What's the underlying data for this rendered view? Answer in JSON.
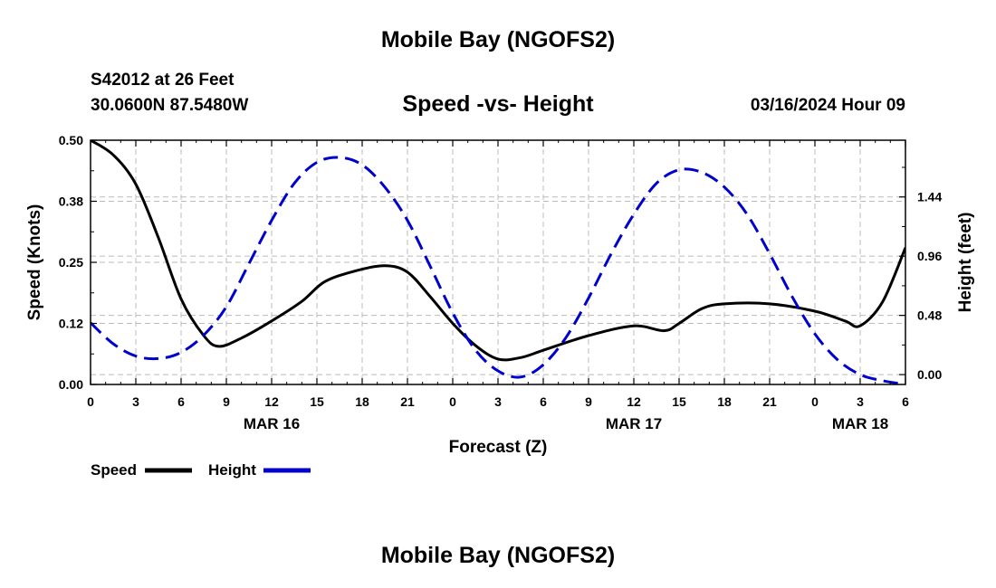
{
  "header": {
    "title": "Mobile Bay (NGOFS2)",
    "station": "S42012 at 26 Feet",
    "coords": "30.0600N  87.5480W",
    "chart_title": "Speed -vs- Height",
    "forecast_time": "03/16/2024 Hour 09"
  },
  "footer": {
    "title": "Mobile Bay (NGOFS2)"
  },
  "chart_data": {
    "type": "line",
    "title": "Speed -vs- Height",
    "xlabel": "Forecast (Z)",
    "ylabel": "Speed (Knots)",
    "y2label": "Height (feet)",
    "xlim": [
      0,
      54
    ],
    "ylim": [
      0,
      0.5
    ],
    "y2lim": [
      -0.08,
      1.9
    ],
    "x_ticks": [
      0,
      3,
      6,
      9,
      12,
      15,
      18,
      21,
      24,
      27,
      30,
      33,
      36,
      39,
      42,
      45,
      48,
      51,
      54
    ],
    "x_tick_labels": [
      "0",
      "3",
      "6",
      "9",
      "12",
      "15",
      "18",
      "21",
      "0",
      "3",
      "6",
      "9",
      "12",
      "15",
      "18",
      "21",
      "0",
      "3",
      "6"
    ],
    "date_labels": [
      {
        "x": 12,
        "label": "MAR 16"
      },
      {
        "x": 36,
        "label": "MAR 17"
      },
      {
        "x": 51,
        "label": "MAR 18"
      }
    ],
    "y_ticks": [
      0,
      0.125,
      0.25,
      0.375,
      0.5
    ],
    "y_tick_labels": [
      "0.00",
      "0.12",
      "0.25",
      "0.38",
      "0.50"
    ],
    "y2_ticks": [
      0,
      0.48,
      0.96,
      1.44
    ],
    "y2_tick_labels": [
      "0.00",
      "0.48",
      "0.96",
      "1.44"
    ],
    "grid": true,
    "series": [
      {
        "name": "Speed",
        "axis": "left",
        "color": "#000000",
        "style": "solid",
        "x": [
          0,
          1.5,
          3,
          4.5,
          6,
          7.5,
          8.5,
          10,
          12,
          14,
          15.5,
          17.5,
          19.5,
          21,
          22.5,
          24,
          25.5,
          27,
          28.5,
          30,
          33,
          36,
          38,
          39,
          40.5,
          42,
          45,
          48,
          50,
          51,
          52.5,
          54
        ],
        "y": [
          0.5,
          0.47,
          0.41,
          0.3,
          0.175,
          0.1,
          0.078,
          0.095,
          0.13,
          0.17,
          0.21,
          0.232,
          0.243,
          0.23,
          0.18,
          0.125,
          0.08,
          0.052,
          0.055,
          0.07,
          0.1,
          0.12,
          0.11,
          0.125,
          0.155,
          0.165,
          0.165,
          0.15,
          0.13,
          0.12,
          0.17,
          0.28
        ]
      },
      {
        "name": "Height",
        "axis": "right",
        "color": "#0000cc",
        "style": "dashed",
        "x": [
          0,
          1.5,
          3,
          4.5,
          6,
          7.5,
          9,
          10.5,
          12,
          13.5,
          15,
          16.5,
          18,
          19.5,
          21,
          22.5,
          24,
          25.5,
          27,
          28.5,
          30,
          31.5,
          33,
          34.5,
          36,
          37.5,
          39,
          40.5,
          42,
          43.5,
          45,
          46.5,
          48,
          49.5,
          51,
          52.5,
          54
        ],
        "y": [
          0.42,
          0.25,
          0.15,
          0.13,
          0.18,
          0.32,
          0.55,
          0.9,
          1.25,
          1.55,
          1.72,
          1.76,
          1.7,
          1.52,
          1.25,
          0.88,
          0.5,
          0.2,
          0.03,
          -0.02,
          0.08,
          0.3,
          0.62,
          0.98,
          1.3,
          1.55,
          1.66,
          1.64,
          1.52,
          1.3,
          0.98,
          0.63,
          0.33,
          0.12,
          0.0,
          -0.05,
          -0.08
        ]
      }
    ],
    "legend": {
      "placement": "bottom-left"
    }
  }
}
